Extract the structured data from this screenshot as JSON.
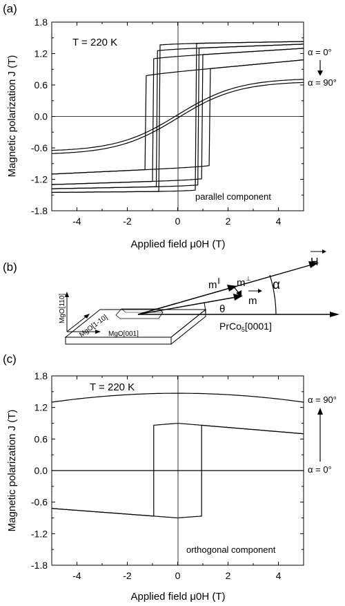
{
  "figure": {
    "panel_labels": [
      "(a)",
      "(b)",
      "(c)"
    ]
  },
  "chart_data": [
    {
      "type": "line",
      "panel": "(a)",
      "xlabel": "Applied field μ0H (T)",
      "ylabel": "Magnetic polarization J (T)",
      "xlim": [
        -5,
        5
      ],
      "ylim": [
        -1.8,
        1.8
      ],
      "xticks": [
        -4,
        -2,
        0,
        2,
        4
      ],
      "yticks": [
        -1.8,
        -1.2,
        -0.6,
        0.0,
        0.6,
        1.2,
        1.8
      ],
      "ytick_labels": [
        "-1.8",
        "-1.2",
        "-0.6",
        "0.0",
        "0.6",
        "1.2",
        "1.8"
      ],
      "temperature_label": "T = 220 K",
      "component_label": "parallel component",
      "alpha_top": "α = 0°",
      "alpha_bottom": "α = 90°",
      "series": [
        {
          "sat": 1.43,
          "hc": 0.7,
          "sl": 0.008,
          "lo": -1.45
        },
        {
          "sat": 1.38,
          "hc": 0.8,
          "sl": 0.018,
          "lo": -1.38
        },
        {
          "sat": 1.3,
          "hc": 0.95,
          "sl": 0.03,
          "lo": -1.3
        },
        {
          "sat": 1.08,
          "hc": 1.25,
          "sl": 0.045,
          "lo": -1.1
        },
        {
          "sat": 0.7,
          "hc": 0.0,
          "sl": 0.15,
          "lo": -0.75
        }
      ]
    },
    {
      "type": "line",
      "panel": "(c)",
      "xlabel": "Applied field μ0H (T)",
      "ylabel": "Magnetic polarization J (T)",
      "xlim": [
        -5,
        5
      ],
      "ylim": [
        -1.8,
        1.8
      ],
      "xticks": [
        -4,
        -2,
        0,
        2,
        4
      ],
      "yticks": [
        -1.8,
        -1.2,
        -0.6,
        0.0,
        0.6,
        1.2,
        1.8
      ],
      "ytick_labels": [
        "-1.8",
        "-1.2",
        "-0.6",
        "0.0",
        "0.6",
        "1.2",
        "1.8"
      ],
      "temperature_label": "T = 220 K",
      "component_label": "orthogonal component",
      "alpha_top": "α = 90°",
      "alpha_bottom": "α = 0°",
      "series": [
        {
          "curve": "dome",
          "y_at_0": 1.47,
          "y_at_edge": 1.3
        },
        {
          "curve": "loop",
          "hc": 0.95,
          "upper_at_0": 0.9,
          "upper_at_edge": 0.7,
          "lower_at_0": -0.9,
          "lower_at_edge": -0.72
        },
        {
          "curve": "flat",
          "y": 0.0
        }
      ]
    }
  ],
  "diagram_b": {
    "labels": {
      "h": "H",
      "m_par": "m",
      "m_par_sup": "∥",
      "m_perp": "m",
      "m_perp_sup": "⊥",
      "m": "m",
      "alpha": "α",
      "theta": "θ",
      "prco": "PrCo",
      "prco_sub": "5",
      "prco_dir": "[0001]",
      "mgo_110": "MgO[110]",
      "mgo_1_10": "MgO[1-10]",
      "mgo_001": "MgO[001]"
    }
  }
}
